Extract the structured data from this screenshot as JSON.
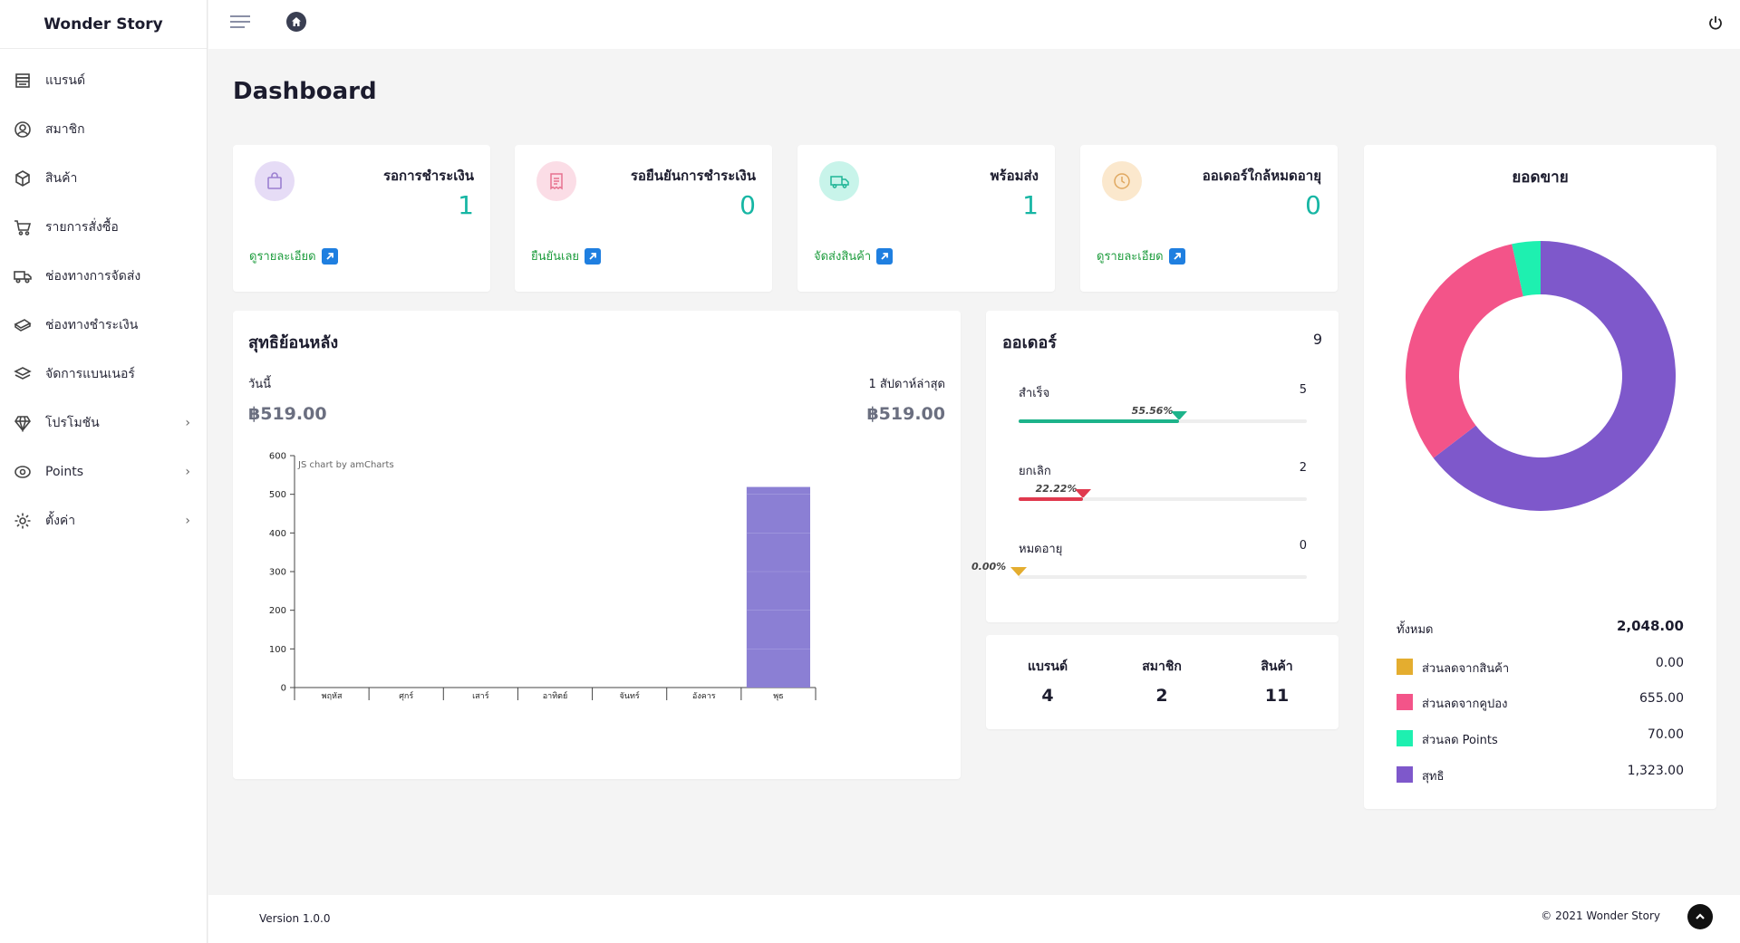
{
  "sidebar": {
    "brand": "Wonder Story",
    "items": [
      {
        "label": "แบรนด์",
        "icon": "store-icon"
      },
      {
        "label": "สมาชิก",
        "icon": "user-circle-icon"
      },
      {
        "label": "สินค้า",
        "icon": "box-icon"
      },
      {
        "label": "รายการสั่งซื้อ",
        "icon": "cart-icon"
      },
      {
        "label": "ช่องทางการจัดส่ง",
        "icon": "truck-icon"
      },
      {
        "label": "ช่องทางชำระเงิน",
        "icon": "money-icon"
      },
      {
        "label": "จัดการแบนเนอร์",
        "icon": "layers-icon"
      },
      {
        "label": "โปรโมชัน",
        "icon": "diamond-icon",
        "has_submenu": true
      },
      {
        "label": "Points",
        "icon": "coin-icon",
        "has_submenu": true
      },
      {
        "label": "ตั้งค่า",
        "icon": "gear-icon",
        "has_submenu": true
      }
    ]
  },
  "page_title": "Dashboard",
  "stats": [
    {
      "title": "รอการชำระเงิน",
      "count": "1",
      "link": "ดูรายละเอียด",
      "icon": "shopping-bag-icon",
      "color": "#e6dcf6",
      "icon_color": "#9b7fd0"
    },
    {
      "title": "รอยืนยันการชำระเงิน",
      "count": "0",
      "link": "ยืนยันเลย",
      "icon": "receipt-icon",
      "color": "#fbdde6",
      "icon_color": "#e7728f"
    },
    {
      "title": "พร้อมส่ง",
      "count": "1",
      "link": "จัดส่งสินค้า",
      "icon": "truck-icon",
      "color": "#c8f4ea",
      "icon_color": "#1fb596"
    },
    {
      "title": "ออเดอร์ใกล้หมดอายุ",
      "count": "0",
      "link": "ดูรายละเอียด",
      "icon": "clock-icon",
      "color": "#fbe8cd",
      "icon_color": "#e0a860"
    }
  ],
  "revenue": {
    "title": "สุทธิย้อนหลัง",
    "today_label": "วันนี้",
    "week_label": "1 สัปดาห์ล่าสุด",
    "today_value": "฿519.00",
    "week_value": "฿519.00",
    "watermark": "JS chart by amCharts"
  },
  "chart_data": {
    "type": "bar",
    "categories": [
      "พฤหัส",
      "ศุกร์",
      "เสาร์",
      "อาทิตย์",
      "จันทร์",
      "อังคาร",
      "พุธ"
    ],
    "values": [
      0,
      0,
      0,
      0,
      0,
      0,
      519
    ],
    "ylim": [
      0,
      600
    ],
    "yticks": [
      0,
      100,
      200,
      300,
      400,
      500,
      600
    ],
    "color": "#8b7fd4",
    "grid": false
  },
  "orders": {
    "title": "ออเดอร์",
    "total": "9",
    "rows": [
      {
        "label": "สำเร็จ",
        "count": "5",
        "percent_label": "55.56%",
        "percent": 55.56,
        "color": "#1db38a"
      },
      {
        "label": "ยกเลิก",
        "count": "2",
        "percent_label": "22.22%",
        "percent": 22.22,
        "color": "#e0394e"
      },
      {
        "label": "หมดอายุ",
        "count": "0",
        "percent_label": "0.00%",
        "percent": 0,
        "color": "#e4ad2f"
      }
    ]
  },
  "counts": [
    {
      "label": "แบรนด์",
      "value": "4"
    },
    {
      "label": "สมาชิก",
      "value": "2"
    },
    {
      "label": "สินค้า",
      "value": "11"
    }
  ],
  "sales": {
    "title": "ยอดขาย",
    "total_label": "ทั้งหมด",
    "total_value": "2,048.00",
    "legend": [
      {
        "label": "ส่วนลดจากสินค้า",
        "value": "0.00",
        "amount": 0,
        "color": "#e4ad2f"
      },
      {
        "label": "ส่วนลดจากคูปอง",
        "value": "655.00",
        "amount": 655,
        "color": "#f35489"
      },
      {
        "label": "ส่วนลด Points",
        "value": "70.00",
        "amount": 70,
        "color": "#1ef0b0"
      },
      {
        "label": "สุทธิ",
        "value": "1,323.00",
        "amount": 1323,
        "color": "#7e58cb"
      }
    ]
  },
  "footer": {
    "version": "Version 1.0.0",
    "copyright": "© 2021 Wonder Story"
  }
}
